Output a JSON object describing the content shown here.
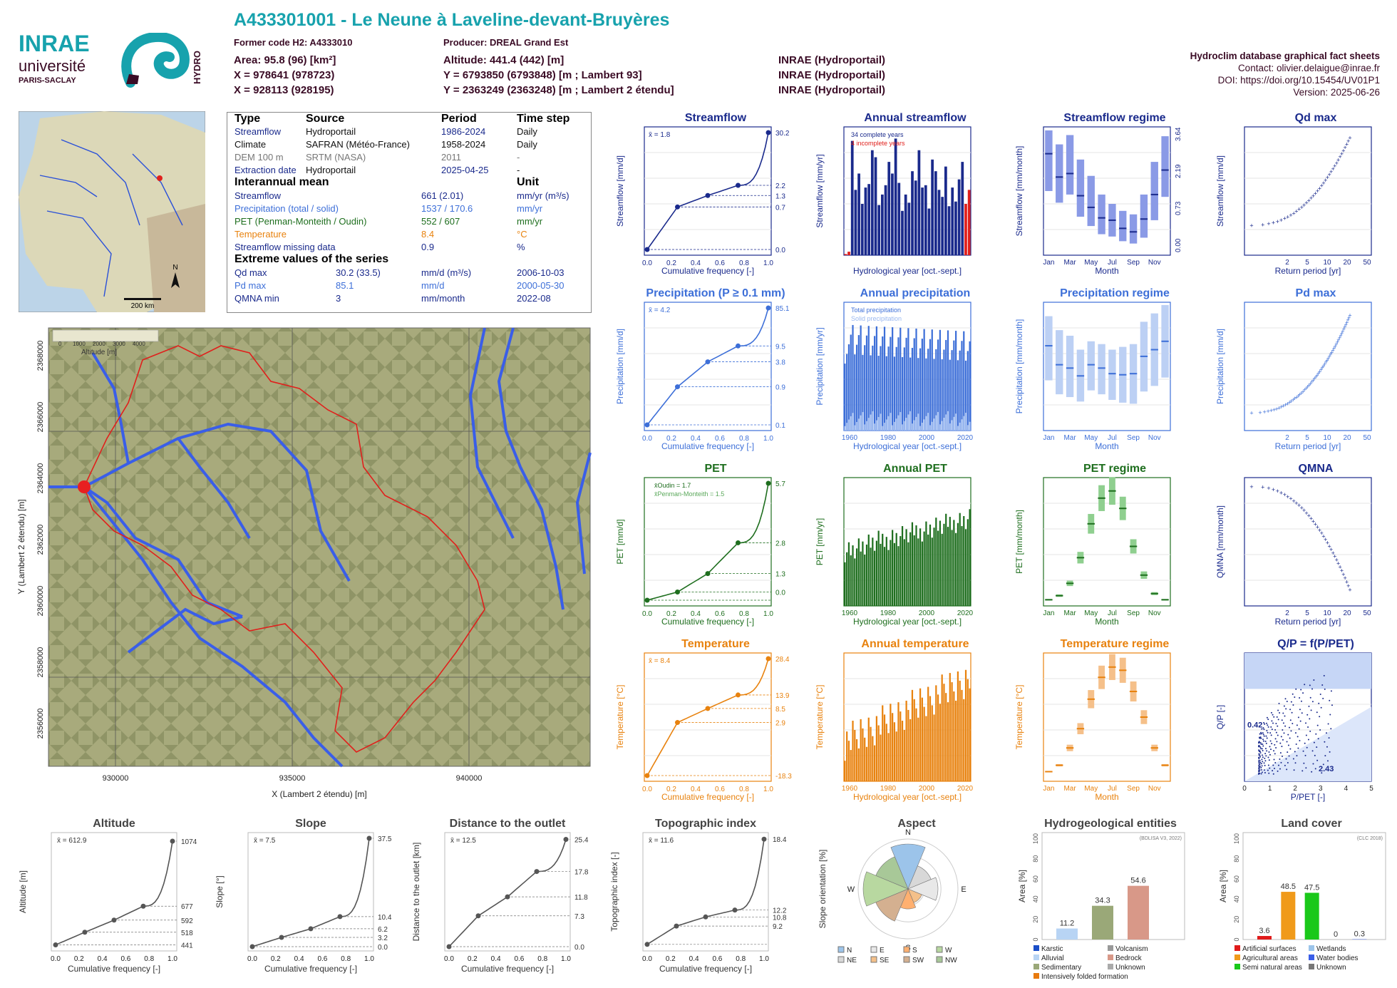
{
  "header": {
    "title": "A433301001 - Le Neune à Laveline-devant-Bruyères",
    "former_code": "Former code H2: A4333010",
    "producer": "Producer: DREAL Grand Est",
    "area": "Area: 95.8 (96) [km²]",
    "x1": "X = 978641 (978723)",
    "x2": "X = 928113 (928195)",
    "altitude": "Altitude: 441.4 (442) [m]",
    "y1": "Y = 6793850 (6793848) [m ; Lambert 93]",
    "y2": "Y = 2363249 (2363248) [m ; Lambert 2 étendu]",
    "src1": "INRAE (Hydroportail)",
    "src2": "INRAE (Hydroportail)",
    "src3": "INRAE (Hydroportail)",
    "db_name": "Hydroclim database graphical fact sheets",
    "contact": "Contact: olivier.delaigue@inrae.fr",
    "doi": "DOI: https://doi.org/10.15454/UV01P1",
    "version": "Version: 2025-06-26",
    "logo_inrae": "INRAE",
    "logo_univ": "université",
    "logo_paris": "PARIS-SACLAY",
    "logo_hydro": "HYDRO"
  },
  "colors": {
    "teal": "#17a2ad",
    "dark": "#3a0b25",
    "blue": "#1a2a8c",
    "precip": "#3d6fd8",
    "pet": "#1e6e1e",
    "temp": "#e8820e",
    "river": "#3a5ee8",
    "basin": "#e0201c"
  },
  "infobox": {
    "h_type": "Type",
    "h_source": "Source",
    "h_period": "Period",
    "h_step": "Time step",
    "rows": [
      {
        "type": "Streamflow",
        "source": "Hydroportail",
        "period": "1986-2024",
        "step": "Daily",
        "color": "#1a2a8c"
      },
      {
        "type": "Climate",
        "source": "SAFRAN (Météo-France)",
        "period": "1958-2024",
        "step": "Daily",
        "color": "#111111"
      },
      {
        "type": "DEM 100 m",
        "source": "SRTM (NASA)",
        "period": "2011",
        "step": "-",
        "color": "#777777"
      },
      {
        "type": "Extraction date",
        "source": "Hydroportail",
        "period": "2025-04-25",
        "step": "-",
        "color": "#1a2a8c"
      }
    ],
    "h_mean": "Interannual mean",
    "h_unit": "Unit",
    "means": [
      {
        "label": "Streamflow",
        "value": "661 (2.01)",
        "unit": "mm/yr (m³/s)",
        "color": "#1a2a8c"
      },
      {
        "label": "Precipitation (total / solid)",
        "value": "1537 / 170.6",
        "unit": "mm/yr",
        "color": "#3d6fd8"
      },
      {
        "label": "PET (Penman-Monteith / Oudin)",
        "value": "552 / 607",
        "unit": "mm/yr",
        "color": "#1e6e1e"
      },
      {
        "label": "Temperature",
        "value": "8.4",
        "unit": "°C",
        "color": "#e8820e"
      },
      {
        "label": "Streamflow missing data",
        "value": "0.9",
        "unit": "%",
        "color": "#1a2a8c"
      }
    ],
    "h_ext": "Extreme values of the series",
    "extremes": [
      {
        "label": "Qd max",
        "value": "30.2 (33.5)",
        "unit": "mm/d (m³/s)",
        "date": "2006-10-03",
        "color": "#1a2a8c"
      },
      {
        "label": "Pd max",
        "value": "85.1",
        "unit": "mm/d",
        "date": "2000-05-30",
        "color": "#3d6fd8"
      },
      {
        "label": "QMNA min",
        "value": "3",
        "unit": "mm/month",
        "date": "2022-08",
        "color": "#1a2a8c"
      }
    ]
  },
  "locator_map": {
    "scale": "200 km",
    "north": "N"
  },
  "catchment_map": {
    "xlabel": "X (Lambert 2 étendu) [m]",
    "ylabel": "Y (Lambert 2 étendu) [m]",
    "xticks": [
      "930000",
      "935000",
      "940000"
    ],
    "yticks": [
      "2356000",
      "2358000",
      "2360000",
      "2362000",
      "2364000",
      "2366000",
      "2368000"
    ],
    "legend_title": "Altitude [m]",
    "legend_ticks": [
      "0",
      "1000",
      "2000",
      "3000",
      "4000"
    ]
  },
  "chart_data": [
    {
      "id": "streamflow-cdf",
      "type": "line",
      "title": "Streamflow",
      "xlabel": "Cumulative frequency [-]",
      "ylabel": "Streamflow [mm/d]",
      "log_y": true,
      "xlim": [
        0,
        1
      ],
      "ylim": [
        0.0,
        30.2
      ],
      "mean_label": "x̄ = 1.8",
      "right_labels": [
        "30.2",
        "2.2",
        "1.3",
        "0.7",
        "0.0"
      ],
      "x": [
        0,
        0.25,
        0.5,
        0.75,
        1
      ],
      "y": [
        0.0,
        0.7,
        1.3,
        2.2,
        30.2
      ]
    },
    {
      "id": "annual-streamflow",
      "type": "bar",
      "title": "Annual streamflow",
      "xlabel": "Hydrological year [oct.-sept.]",
      "ylabel": "Streamflow [mm/yr]",
      "ylim": [
        0,
        1100
      ],
      "legend": [
        "34 complete years",
        "4 incomplete years"
      ],
      "years": [
        1986,
        1987,
        1988,
        1989,
        1990,
        1991,
        1992,
        1993,
        1994,
        1995,
        1996,
        1997,
        1998,
        1999,
        2000,
        2001,
        2002,
        2003,
        2004,
        2005,
        2006,
        2007,
        2008,
        2009,
        2010,
        2011,
        2012,
        2013,
        2014,
        2015,
        2016,
        2017,
        2018,
        2019,
        2020,
        2021,
        2022,
        2023
      ],
      "values": [
        10,
        30,
        980,
        560,
        700,
        440,
        580,
        610,
        900,
        840,
        430,
        520,
        600,
        800,
        700,
        1000,
        620,
        380,
        520,
        450,
        720,
        640,
        900,
        580,
        600,
        400,
        820,
        720,
        560,
        500,
        760,
        420,
        580,
        460,
        650,
        800,
        440,
        560
      ],
      "incomplete": [
        1986,
        1987,
        2022,
        2023
      ]
    },
    {
      "id": "streamflow-regime",
      "type": "bar",
      "title": "Streamflow regime",
      "xlabel": "Month",
      "ylabel": "Streamflow [mm/month]",
      "right_labels": [
        "3.64",
        "2.19",
        "0.73",
        "0.00"
      ],
      "categories": [
        "Jan",
        "Feb",
        "Mar",
        "Apr",
        "May",
        "Jun",
        "Jul",
        "Aug",
        "Sep",
        "Oct",
        "Nov",
        "Dec"
      ],
      "values": [
        87,
        67,
        70,
        51,
        41,
        32,
        30,
        23,
        20,
        31,
        52,
        73
      ],
      "q_low": [
        55,
        45,
        52,
        33,
        25,
        18,
        16,
        12,
        10,
        15,
        30,
        50
      ],
      "q_high": [
        107,
        95,
        103,
        82,
        68,
        52,
        44,
        38,
        35,
        52,
        80,
        102
      ],
      "ylim": [
        0,
        110
      ]
    },
    {
      "id": "qd-max",
      "type": "scatter",
      "title": "Qd max",
      "xlabel": "Return period [yr]",
      "ylabel": "Streamflow [mm/d]",
      "xticks": [
        "2",
        "5",
        "10",
        "20",
        "50"
      ],
      "yticks": [
        "0",
        "5",
        "10",
        "15",
        "20",
        "25",
        "30"
      ],
      "ylim": [
        0,
        32
      ]
    },
    {
      "id": "precip-cdf",
      "type": "line",
      "title": "Precipitation (P ≥ 0.1 mm)",
      "xlabel": "Cumulative frequency [-]",
      "ylabel": "Precipitation [mm/d]",
      "log_y": true,
      "mean_label": "x̄ = 4.2",
      "right_labels": [
        "85.1",
        "9.5",
        "3.8",
        "0.9",
        "0.1"
      ],
      "x": [
        0,
        0.25,
        0.5,
        0.75,
        1
      ],
      "y": [
        0.1,
        0.9,
        3.8,
        9.5,
        85.1
      ]
    },
    {
      "id": "annual-precip",
      "type": "bar",
      "title": "Annual precipitation",
      "xlabel": "Hydrological year [oct.-sept.]",
      "ylabel": "Precipitation [mm/yr]",
      "legend": [
        "Total precipitation",
        "Solid precipitation"
      ],
      "ylim": [
        0,
        2300
      ],
      "xticks": [
        "1960",
        "1980",
        "2000",
        "2020"
      ]
    },
    {
      "id": "precip-regime",
      "type": "bar",
      "title": "Precipitation regime",
      "xlabel": "Month",
      "ylabel": "Precipitation [mm/month]",
      "categories": [
        "Jan",
        "Feb",
        "Mar",
        "Apr",
        "May",
        "Jun",
        "Jul",
        "Aug",
        "Sep",
        "Oct",
        "Nov",
        "Dec"
      ],
      "values": [
        152,
        118,
        112,
        98,
        118,
        112,
        102,
        100,
        102,
        133,
        145,
        160
      ],
      "q_low": [
        90,
        65,
        60,
        52,
        72,
        65,
        55,
        50,
        48,
        70,
        80,
        95
      ],
      "q_high": [
        205,
        180,
        170,
        145,
        160,
        155,
        145,
        150,
        155,
        195,
        210,
        225
      ],
      "ylim": [
        0,
        230
      ]
    },
    {
      "id": "pd-max",
      "type": "scatter",
      "title": "Pd max",
      "xlabel": "Return period [yr]",
      "ylabel": "Precipitation [mm/d]",
      "xticks": [
        "2",
        "5",
        "10",
        "20",
        "50"
      ],
      "yticks": [
        "40",
        "50",
        "60",
        "70",
        "80"
      ],
      "ylim": [
        30,
        90
      ]
    },
    {
      "id": "pet-cdf",
      "type": "line",
      "title": "PET",
      "xlabel": "Cumulative frequency [-]",
      "ylabel": "PET [mm/d]",
      "mean_labels": [
        "x̄Oudin = 1.7",
        "x̄Penman-Monteith = 1.5"
      ],
      "right_labels": [
        "5.7",
        "2.8",
        "1.3",
        "0.0"
      ],
      "x": [
        0,
        0.25,
        0.5,
        0.75,
        1
      ],
      "y": [
        0.0,
        0.4,
        1.3,
        2.8,
        5.7
      ]
    },
    {
      "id": "annual-pet",
      "type": "bar",
      "title": "Annual PET",
      "xlabel": "Hydrological year [oct.-sept.]",
      "ylabel": "PET [mm/yr]",
      "ylim": [
        350,
        850
      ],
      "xticks": [
        "1960",
        "1980",
        "2000",
        "2020"
      ]
    },
    {
      "id": "pet-regime",
      "type": "bar",
      "title": "PET regime",
      "xlabel": "Month",
      "ylabel": "PET [mm/month]",
      "categories": [
        "Jan",
        "Feb",
        "Mar",
        "Apr",
        "May",
        "Jun",
        "Jul",
        "Aug",
        "Sep",
        "Oct",
        "Nov",
        "Dec"
      ],
      "values": [
        6,
        10,
        22,
        47,
        80,
        105,
        112,
        95,
        58,
        30,
        12,
        6
      ],
      "ylim": [
        0,
        125
      ]
    },
    {
      "id": "qmna",
      "type": "scatter",
      "title": "QMNA",
      "xlabel": "Return period [yr]",
      "ylabel": "QMNA [mm/month]",
      "xticks": [
        "2",
        "5",
        "10",
        "20",
        "50"
      ],
      "yticks": [
        "10",
        "20",
        "30",
        "40"
      ],
      "ylim": [
        0,
        42
      ]
    },
    {
      "id": "temp-cdf",
      "type": "line",
      "title": "Temperature",
      "xlabel": "Cumulative frequency [-]",
      "ylabel": "Temperature [°C]",
      "mean_label": "x̄ = 8.4",
      "right_labels": [
        "28.4",
        "13.9",
        "8.5",
        "2.9",
        "-18.3"
      ],
      "x": [
        0,
        0.25,
        0.5,
        0.75,
        1
      ],
      "y": [
        -18.3,
        2.9,
        8.5,
        13.9,
        28.4
      ]
    },
    {
      "id": "annual-temp",
      "type": "bar",
      "title": "Annual temperature",
      "xlabel": "Hydrological year [oct.-sept.]",
      "ylabel": "Temperature [°C]",
      "ylim": [
        5.8,
        10.8
      ],
      "xticks": [
        "1960",
        "1980",
        "2000",
        "2020"
      ]
    },
    {
      "id": "temp-regime",
      "type": "bar",
      "title": "Temperature regime",
      "xlabel": "Month",
      "ylabel": "Temperature [°C]",
      "categories": [
        "Jan",
        "Feb",
        "Mar",
        "Apr",
        "May",
        "Jun",
        "Jul",
        "Aug",
        "Sep",
        "Oct",
        "Nov",
        "Dec"
      ],
      "values": [
        0.5,
        1.5,
        4.2,
        7.2,
        11.8,
        15.2,
        16.8,
        16.3,
        13.0,
        9.0,
        4.2,
        1.5
      ],
      "ylim": [
        -1,
        19
      ]
    },
    {
      "id": "qp-ppet",
      "type": "scatter",
      "title": "Q/P = f(P/PET)",
      "xlabel": "P/PET [-]",
      "ylabel": "Q/P [-]",
      "annotations": [
        "0.42",
        "2.43"
      ],
      "xlim": [
        0,
        5
      ],
      "ylim": [
        0,
        1.4
      ]
    },
    {
      "id": "altitude-cdf",
      "type": "line",
      "title": "Altitude",
      "xlabel": "Cumulative frequency [-]",
      "ylabel": "Altitude [m]",
      "mean_label": "x̄ = 612.9",
      "right_labels": [
        "1074",
        "677",
        "592",
        "518",
        "441"
      ],
      "x": [
        0,
        0.25,
        0.5,
        0.75,
        1
      ],
      "y": [
        441,
        518,
        592,
        677,
        1074
      ],
      "ylim": [
        430,
        1100
      ]
    },
    {
      "id": "slope-cdf",
      "type": "line",
      "title": "Slope",
      "xlabel": "Cumulative frequency [-]",
      "ylabel": "Slope [°]",
      "mean_label": "x̄ = 7.5",
      "right_labels": [
        "37.5",
        "10.4",
        "6.2",
        "3.2",
        "0.0"
      ],
      "x": [
        0,
        0.25,
        0.5,
        0.75,
        1
      ],
      "y": [
        0.0,
        3.2,
        6.2,
        10.4,
        37.5
      ],
      "ylim": [
        0,
        38
      ]
    },
    {
      "id": "distance-cdf",
      "type": "line",
      "title": "Distance to the outlet",
      "xlabel": "Cumulative frequency [-]",
      "ylabel": "Distance to the outlet [km]",
      "mean_label": "x̄ = 12.5",
      "right_labels": [
        "25.4",
        "17.8",
        "11.8",
        "7.3",
        "0.0"
      ],
      "x": [
        0,
        0.25,
        0.5,
        0.75,
        1
      ],
      "y": [
        0.0,
        7.3,
        11.8,
        17.8,
        25.4
      ],
      "ylim": [
        0,
        26
      ]
    },
    {
      "id": "topo-cdf",
      "type": "line",
      "title": "Topographic index",
      "xlabel": "Cumulative frequency [-]",
      "ylabel": "Topographic index [-]",
      "mean_label": "x̄ = 11.6",
      "right_labels": [
        "18.4",
        "12.2",
        "10.8",
        "9.2"
      ],
      "x": [
        0,
        0.25,
        0.5,
        0.75,
        1
      ],
      "y": [
        9.2,
        10.8,
        11.6,
        12.2,
        18.4
      ],
      "ylim": [
        9,
        18.6
      ]
    },
    {
      "id": "aspect",
      "type": "pie",
      "title": "Aspect",
      "ylabel": "Slope orientation [%]",
      "directions": [
        "N",
        "NE",
        "E",
        "SE",
        "S",
        "SW",
        "W",
        "NW"
      ],
      "values": [
        18,
        10,
        12,
        6,
        8,
        14,
        18,
        14
      ],
      "legend": [
        "N",
        "E",
        "S",
        "W",
        "NE",
        "SE",
        "SW",
        "NW"
      ]
    },
    {
      "id": "hydrogeology",
      "type": "bar",
      "title": "Hydrogeological entities",
      "ylabel": "Area [%]",
      "source": "(BDLISA V3, 2022)",
      "categories": [
        "Alluvial",
        "Sedimentary",
        "Bedrock"
      ],
      "values": [
        11.2,
        34.3,
        54.6
      ],
      "legend": [
        "Karstic",
        "Volcanism",
        "Alluvial",
        "Bedrock",
        "Sedimentary",
        "Unknown",
        "Intensively folded formation"
      ],
      "ylim": [
        0,
        100
      ]
    },
    {
      "id": "land-cover",
      "type": "bar",
      "title": "Land cover",
      "ylabel": "Area [%]",
      "source": "(CLC 2018)",
      "categories": [
        "Artificial surfaces",
        "Agricultural areas",
        "Semi natural areas",
        "Wetlands",
        "Water bodies"
      ],
      "values": [
        3.6,
        48.5,
        47.5,
        0.0,
        0.3
      ],
      "legend": [
        "Artificial surfaces",
        "Wetlands",
        "Agricultural areas",
        "Water bodies",
        "Semi natural areas",
        "Unknown"
      ],
      "ylim": [
        0,
        100
      ]
    }
  ]
}
